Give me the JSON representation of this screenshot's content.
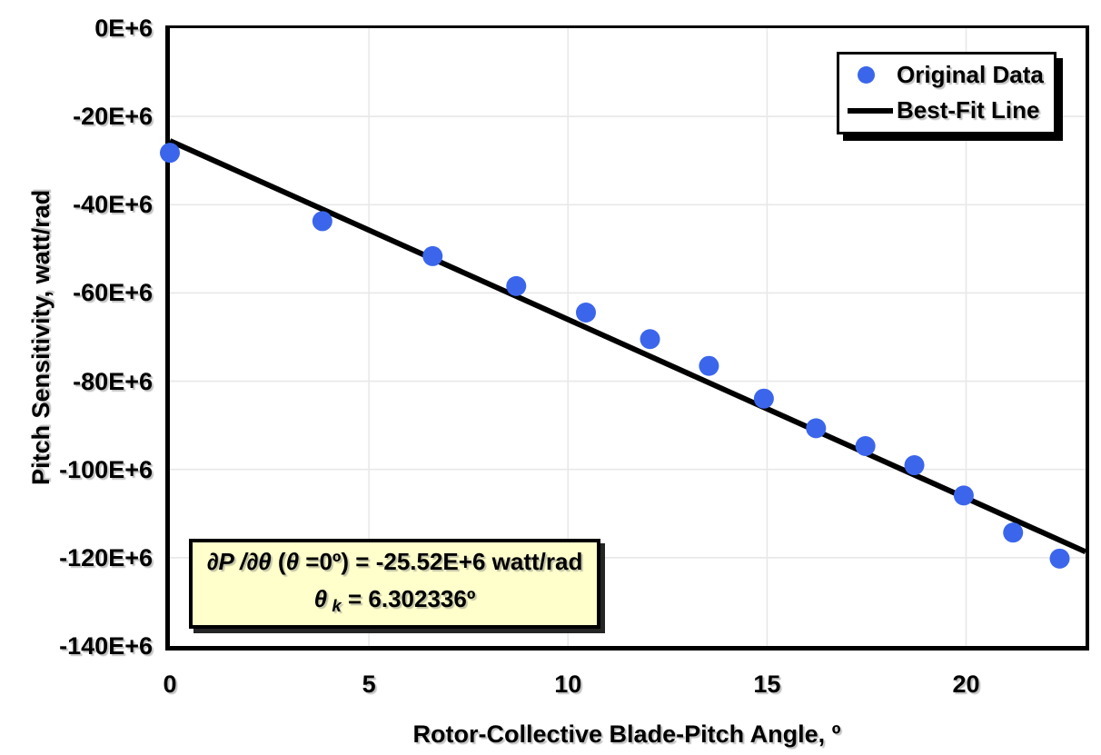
{
  "chart_data": {
    "type": "scatter",
    "title": "",
    "xlabel": "Rotor-Collective Blade-Pitch Angle, º",
    "ylabel": "Pitch Sensitivity, watt/rad",
    "xlim": [
      0,
      23
    ],
    "ylim": [
      -140000000,
      0
    ],
    "grid": true,
    "legend_position": "top-right",
    "x_ticks": {
      "values": [
        0,
        5,
        10,
        15,
        20
      ],
      "labels": [
        "0",
        "5",
        "10",
        "15",
        "20"
      ]
    },
    "y_ticks": {
      "values": [
        0,
        -20000000,
        -40000000,
        -60000000,
        -80000000,
        -100000000,
        -120000000,
        -140000000
      ],
      "labels": [
        "0E+6",
        "-20E+6",
        "-40E+6",
        "-60E+6",
        "-80E+6",
        "-100E+6",
        "-120E+6",
        "-140E+6"
      ]
    },
    "series": [
      {
        "name": "Original Data",
        "type": "scatter",
        "color": "#3B66EC",
        "points": [
          [
            0.0,
            -28240000
          ],
          [
            3.83,
            -43730000
          ],
          [
            6.6,
            -51660000
          ],
          [
            8.7,
            -58440000
          ],
          [
            10.45,
            -64440000
          ],
          [
            12.06,
            -70460000
          ],
          [
            13.54,
            -76530000
          ],
          [
            14.92,
            -83940000
          ],
          [
            16.23,
            -90670000
          ],
          [
            17.47,
            -94710000
          ],
          [
            18.7,
            -99040000
          ],
          [
            19.94,
            -105900000
          ],
          [
            21.18,
            -114300000
          ],
          [
            22.35,
            -120200000
          ]
        ]
      },
      {
        "name": "Best-Fit Line",
        "type": "line",
        "color": "#000000",
        "points": [
          [
            0,
            -25520000
          ],
          [
            23,
            -118650000
          ]
        ]
      }
    ]
  },
  "legend": {
    "items": [
      {
        "label": "Original Data",
        "marker": "dot",
        "color": "#3B66EC"
      },
      {
        "label": "Best-Fit Line",
        "marker": "line",
        "color": "#000000"
      }
    ]
  },
  "annotation": {
    "background": "#FFFFCC",
    "line1": [
      {
        "text": "∂P /∂θ",
        "italic": true
      },
      {
        "text": " (",
        "italic": false
      },
      {
        "text": "θ",
        "italic": true
      },
      {
        "text": " =0º) = -25.52E+6 watt/rad",
        "italic": false
      }
    ],
    "line2": [
      {
        "text": "θ",
        "italic": true
      },
      {
        "text": " k",
        "italic": true,
        "subscript": true
      },
      {
        "text": " = 6.302336º",
        "italic": false
      }
    ]
  },
  "colors": {
    "marker_blue": "#3B66EC",
    "grid": "#E8E8E8",
    "axis": "#000000",
    "annotation_bg": "#FFFFCC"
  }
}
